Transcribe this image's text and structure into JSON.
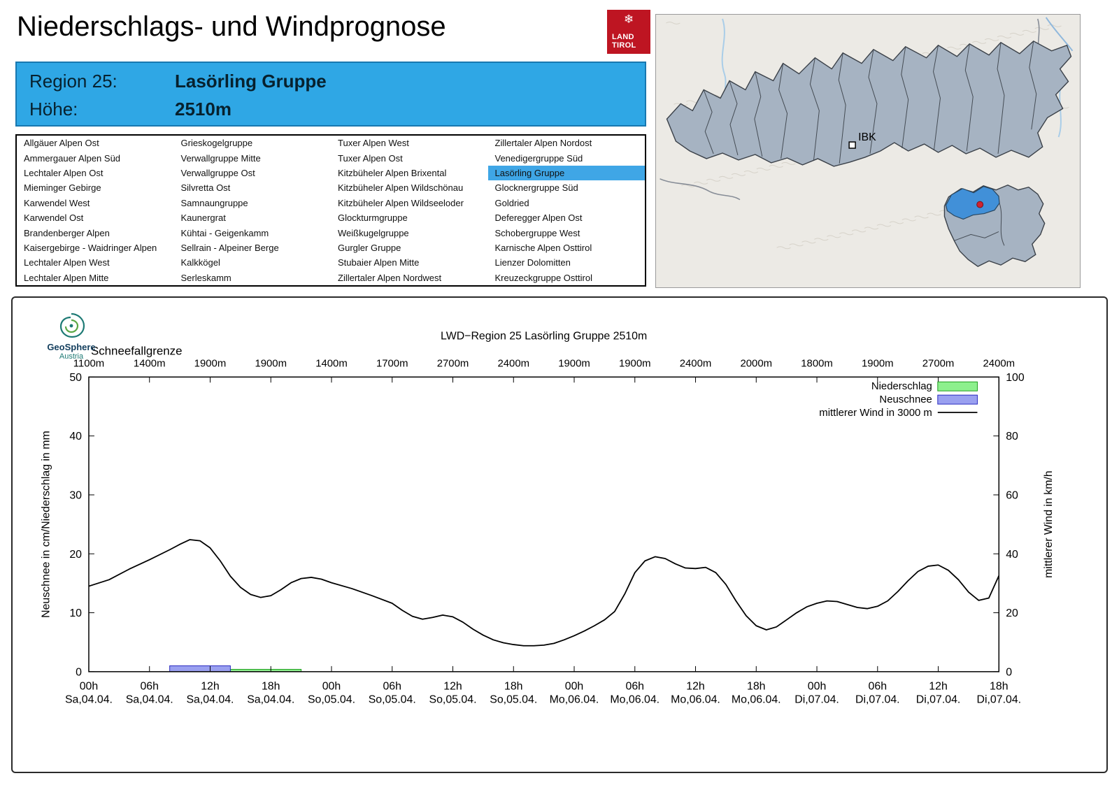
{
  "header": {
    "title": "Niederschlags- und Windprognose"
  },
  "logo": {
    "line1": "LAND",
    "line2": "TIROL",
    "bg": "#be1522"
  },
  "region_info": {
    "region_label": "Region 25:",
    "region_value": "Lasörling Gruppe",
    "altitude_label": "Höhe:",
    "altitude_value": "2510m",
    "bg": "#2fa7e5"
  },
  "region_list": {
    "selected": "Lasörling Gruppe",
    "selected_bg": "#3fa6e6",
    "columns": [
      [
        "Allgäuer Alpen Ost",
        "Ammergauer Alpen Süd",
        "Lechtaler Alpen Ost",
        "Mieminger Gebirge",
        "Karwendel West",
        "Karwendel Ost",
        "Brandenberger Alpen",
        "Kaisergebirge - Waidringer Alpen",
        "Lechtaler Alpen West",
        "Lechtaler Alpen Mitte"
      ],
      [
        "Grieskogelgruppe",
        "Verwallgruppe Mitte",
        "Verwallgruppe Ost",
        "Silvretta Ost",
        "Samnaungruppe",
        "Kaunergrat",
        "Kühtai - Geigenkamm",
        "Sellrain - Alpeiner Berge",
        "Kalkkögel",
        "Serleskamm"
      ],
      [
        "Tuxer Alpen West",
        "Tuxer Alpen Ost",
        "Kitzbüheler Alpen Brixental",
        "Kitzbüheler Alpen Wildschönau",
        "Kitzbüheler Alpen Wildseeloder",
        "Glockturmgruppe",
        "Weißkugelgruppe",
        "Gurgler Gruppe",
        "Stubaier Alpen Mitte",
        "Zillertaler Alpen Nordwest"
      ],
      [
        "Zillertaler Alpen Nordost",
        "Venedigergruppe Süd",
        "Lasörling Gruppe",
        "Glocknergruppe Süd",
        "Goldried",
        "Deferegger Alpen Ost",
        "Schobergruppe West",
        "Karnische Alpen Osttirol",
        "Lienzer Dolomitten",
        "Kreuzeckgruppe Osttirol"
      ]
    ]
  },
  "map": {
    "marker_label": "IBK",
    "region_fill": "#a6b3c2",
    "highlight_color": "#4190d8",
    "dot_color": "#cf2330"
  },
  "geosphere": {
    "name": "GeoSphere",
    "sub": "Austria"
  },
  "chart_data": {
    "type": "line+bar",
    "title": "LWD−Region 25 Lasörling Gruppe 2510m",
    "snowline_label": "Schneefallgrenze",
    "snowline_values": [
      "1100m",
      "1400m",
      "1900m",
      "1900m",
      "1400m",
      "1700m",
      "2700m",
      "2400m",
      "1900m",
      "1900m",
      "2400m",
      "2000m",
      "1800m",
      "1900m",
      "2700m",
      "2400m"
    ],
    "ylabel_left": "Neuschnee in cm/Niederschlag in mm",
    "ylabel_right": "mittlerer Wind in km/h",
    "ylim_left": [
      0,
      50
    ],
    "ylim_right": [
      0,
      100
    ],
    "x_hours_range": [
      0,
      90
    ],
    "x_ticks": [
      {
        "hour": 0,
        "time": "00h",
        "date": "Sa,04.04."
      },
      {
        "hour": 6,
        "time": "06h",
        "date": "Sa,04.04."
      },
      {
        "hour": 12,
        "time": "12h",
        "date": "Sa,04.04."
      },
      {
        "hour": 18,
        "time": "18h",
        "date": "Sa,04.04."
      },
      {
        "hour": 24,
        "time": "00h",
        "date": "So,05.04."
      },
      {
        "hour": 30,
        "time": "06h",
        "date": "So,05.04."
      },
      {
        "hour": 36,
        "time": "12h",
        "date": "So,05.04."
      },
      {
        "hour": 42,
        "time": "18h",
        "date": "So,05.04."
      },
      {
        "hour": 48,
        "time": "00h",
        "date": "Mo,06.04."
      },
      {
        "hour": 54,
        "time": "06h",
        "date": "Mo,06.04."
      },
      {
        "hour": 60,
        "time": "12h",
        "date": "Mo,06.04."
      },
      {
        "hour": 66,
        "time": "18h",
        "date": "Mo,06.04."
      },
      {
        "hour": 72,
        "time": "00h",
        "date": "Di,07.04."
      },
      {
        "hour": 78,
        "time": "06h",
        "date": "Di,07.04."
      },
      {
        "hour": 84,
        "time": "12h",
        "date": "Di,07.04."
      },
      {
        "hour": 90,
        "time": "18h",
        "date": "Di,07.04."
      }
    ],
    "legend": [
      {
        "label": "Niederschlag",
        "type": "box",
        "color": "#8df08d",
        "border": "#1f9e1f"
      },
      {
        "label": "Neuschnee",
        "type": "box",
        "color": "#9aa0f0",
        "border": "#2a2ac0"
      },
      {
        "label": "mittlerer Wind in 3000 m",
        "type": "line",
        "color": "#000000"
      }
    ],
    "niederschlag_mm": {
      "start_hour": 14,
      "end_hour": 21,
      "value": 0.4
    },
    "neuschnee_cm": {
      "start_hour": 8,
      "end_hour": 14,
      "value": 1.0
    },
    "wind_kmh": [
      [
        0,
        29
      ],
      [
        2,
        31.2
      ],
      [
        4,
        34.8
      ],
      [
        6,
        38
      ],
      [
        8,
        41.4
      ],
      [
        9,
        43.2
      ],
      [
        10,
        44.8
      ],
      [
        11,
        44.4
      ],
      [
        12,
        42
      ],
      [
        13,
        37.6
      ],
      [
        14,
        32.4
      ],
      [
        15,
        28.6
      ],
      [
        16,
        26.2
      ],
      [
        17,
        25.2
      ],
      [
        18,
        25.8
      ],
      [
        19,
        27.8
      ],
      [
        20,
        30.2
      ],
      [
        21,
        31.6
      ],
      [
        22,
        32
      ],
      [
        23,
        31.4
      ],
      [
        24,
        30.2
      ],
      [
        26,
        28.2
      ],
      [
        28,
        25.8
      ],
      [
        30,
        23.2
      ],
      [
        31,
        20.8
      ],
      [
        32,
        18.8
      ],
      [
        33,
        17.8
      ],
      [
        34,
        18.4
      ],
      [
        35,
        19.2
      ],
      [
        36,
        18.6
      ],
      [
        37,
        16.8
      ],
      [
        38,
        14.4
      ],
      [
        39,
        12.4
      ],
      [
        40,
        10.8
      ],
      [
        41,
        9.8
      ],
      [
        42,
        9.2
      ],
      [
        43,
        8.8
      ],
      [
        44,
        8.8
      ],
      [
        45,
        9
      ],
      [
        46,
        9.6
      ],
      [
        47,
        10.8
      ],
      [
        48,
        12.2
      ],
      [
        49,
        13.8
      ],
      [
        50,
        15.6
      ],
      [
        51,
        17.6
      ],
      [
        52,
        20.4
      ],
      [
        53,
        26.4
      ],
      [
        54,
        33.6
      ],
      [
        55,
        37.6
      ],
      [
        56,
        39
      ],
      [
        57,
        38.4
      ],
      [
        58,
        36.6
      ],
      [
        59,
        35.2
      ],
      [
        60,
        35
      ],
      [
        61,
        35.4
      ],
      [
        62,
        33.6
      ],
      [
        63,
        29.6
      ],
      [
        64,
        24
      ],
      [
        65,
        19
      ],
      [
        66,
        15.6
      ],
      [
        67,
        14.2
      ],
      [
        68,
        15.2
      ],
      [
        69,
        17.6
      ],
      [
        70,
        20
      ],
      [
        71,
        22
      ],
      [
        72,
        23.2
      ],
      [
        73,
        24
      ],
      [
        74,
        23.8
      ],
      [
        75,
        22.8
      ],
      [
        76,
        21.8
      ],
      [
        77,
        21.4
      ],
      [
        78,
        22.2
      ],
      [
        79,
        24
      ],
      [
        80,
        27.2
      ],
      [
        81,
        30.8
      ],
      [
        82,
        34
      ],
      [
        83,
        35.8
      ],
      [
        84,
        36.2
      ],
      [
        85,
        34.4
      ],
      [
        86,
        31.2
      ],
      [
        87,
        27
      ],
      [
        88,
        24.2
      ],
      [
        89,
        25
      ],
      [
        90,
        32.6
      ]
    ]
  }
}
